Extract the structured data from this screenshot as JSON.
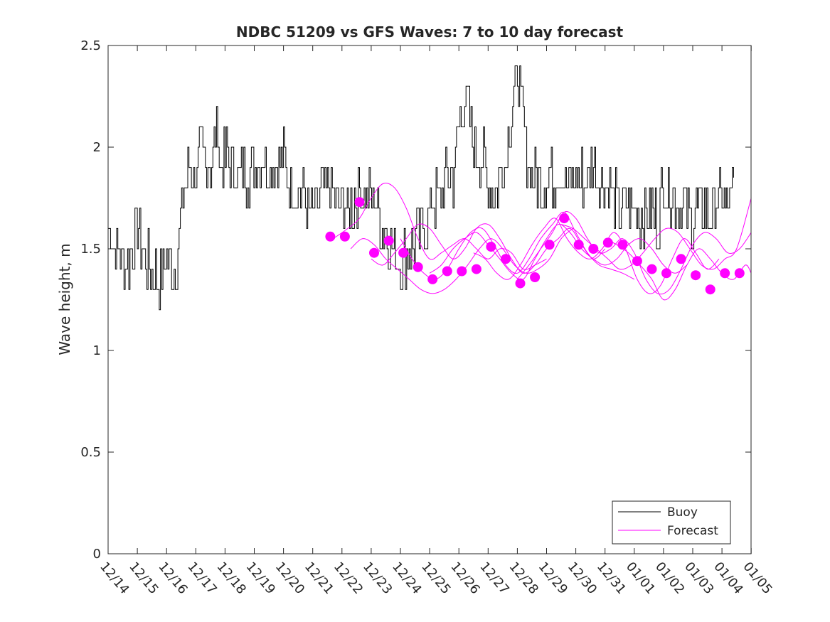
{
  "chart_data": {
    "type": "line",
    "title": "NDBC 51209 vs GFS Waves: 7 to 10 day forecast",
    "xlabel": "",
    "ylabel": "Wave height, m",
    "x_tick_labels": [
      "12/14",
      "12/15",
      "12/16",
      "12/17",
      "12/18",
      "12/19",
      "12/20",
      "12/21",
      "12/22",
      "12/23",
      "12/24",
      "12/25",
      "12/26",
      "12/27",
      "12/28",
      "12/29",
      "12/30",
      "12/31",
      "01/01",
      "01/02",
      "01/03",
      "01/04",
      "01/05"
    ],
    "xlim_days": [
      0,
      22
    ],
    "y_ticks": [
      "0",
      "0.5",
      "1",
      "1.5",
      "2",
      "2.5"
    ],
    "ylim": [
      0,
      2.5
    ],
    "grid": false,
    "legend": {
      "position": "bottom-right",
      "entries": [
        "Buoy",
        "Forecast"
      ]
    },
    "colors": {
      "buoy": "#000000",
      "forecast": "#ff00ff"
    },
    "series": [
      {
        "name": "Buoy",
        "x_day": [
          0,
          0.5,
          0.75,
          1,
          1.2,
          1.45,
          1.75,
          2,
          2.3,
          2.6,
          2.85,
          3,
          3.2,
          3.5,
          3.75,
          3.85,
          4,
          4.3,
          4.6,
          4.9,
          5.2,
          5.5,
          5.8,
          6,
          6.2,
          6.5,
          6.75,
          6.95,
          7.2,
          7.5,
          7.8,
          8.1,
          8.3,
          8.6,
          8.8,
          9.1,
          9.3,
          9.5,
          9.75,
          10,
          10.3,
          10.6,
          10.9,
          11.1,
          11.3,
          11.55,
          11.8,
          12,
          12.2,
          12.5,
          12.8,
          13,
          13.2,
          13.4,
          13.6,
          13.8,
          14,
          14.2,
          14.4,
          14.6,
          14.8,
          15,
          15.2,
          15.4,
          15.6,
          15.8,
          16,
          16.2,
          16.4,
          16.6,
          16.8,
          17,
          17.2,
          17.4,
          17.6,
          17.8,
          18,
          18.2,
          18.4,
          18.6,
          18.8,
          19,
          19.2,
          19.4,
          19.6,
          19.8,
          20,
          20.2,
          20.4,
          20.6,
          20.8,
          21,
          21.15,
          21.3,
          21.4
        ],
        "y": [
          1.6,
          1.45,
          1.45,
          1.6,
          1.45,
          1.4,
          1.35,
          1.45,
          1.4,
          1.8,
          1.9,
          1.85,
          1.95,
          1.9,
          2.1,
          1.85,
          1.95,
          1.9,
          1.85,
          1.9,
          1.95,
          1.9,
          1.95,
          1.95,
          1.8,
          1.8,
          1.75,
          1.65,
          1.75,
          1.8,
          1.75,
          1.7,
          1.7,
          1.8,
          1.75,
          1.75,
          1.65,
          1.6,
          1.5,
          1.45,
          1.5,
          1.55,
          1.6,
          1.75,
          1.75,
          1.85,
          1.85,
          2.1,
          2.25,
          2.0,
          1.95,
          1.8,
          1.75,
          1.85,
          1.95,
          2.2,
          2.35,
          2.1,
          1.9,
          1.85,
          1.8,
          1.85,
          1.85,
          1.9,
          1.85,
          1.8,
          1.85,
          1.85,
          1.85,
          1.95,
          1.8,
          1.85,
          1.8,
          1.7,
          1.7,
          1.75,
          1.7,
          1.65,
          1.65,
          1.7,
          1.65,
          1.8,
          1.8,
          1.75,
          1.7,
          1.7,
          1.65,
          1.7,
          1.7,
          1.65,
          1.75,
          1.75,
          1.7,
          1.75,
          1.85
        ]
      },
      {
        "name": "Forecast",
        "runs": [
          {
            "x_day": [
              7.7,
              8.2,
              8.6,
              9.0,
              9.4,
              9.8,
              10.2,
              10.6,
              11.0,
              11.4,
              11.8,
              12.2,
              12.6,
              13.0,
              13.4,
              13.8,
              14.2,
              14.6,
              15.0
            ],
            "y": [
              1.55,
              1.6,
              1.65,
              1.75,
              1.82,
              1.8,
              1.7,
              1.55,
              1.45,
              1.48,
              1.52,
              1.55,
              1.5,
              1.45,
              1.5,
              1.48,
              1.4,
              1.42,
              1.45
            ]
          },
          {
            "x_day": [
              8.3,
              8.7,
              9.1,
              9.5,
              9.9,
              10.3,
              10.7,
              11.1,
              11.5,
              11.9,
              12.3,
              12.7,
              13.1,
              13.5,
              13.9,
              14.3,
              14.7,
              15.1,
              15.5,
              15.9
            ],
            "y": [
              1.5,
              1.55,
              1.52,
              1.45,
              1.4,
              1.35,
              1.3,
              1.28,
              1.3,
              1.35,
              1.42,
              1.5,
              1.55,
              1.5,
              1.42,
              1.38,
              1.4,
              1.45,
              1.55,
              1.6
            ]
          },
          {
            "x_day": [
              9.0,
              9.4,
              9.8,
              10.2,
              10.6,
              11.0,
              11.4,
              11.8,
              12.2,
              12.6,
              13.0,
              13.4,
              13.8,
              14.2,
              14.6,
              15.0,
              15.4,
              15.8,
              16.2,
              16.6,
              17.0
            ],
            "y": [
              1.45,
              1.42,
              1.48,
              1.55,
              1.62,
              1.6,
              1.52,
              1.45,
              1.5,
              1.6,
              1.62,
              1.55,
              1.45,
              1.38,
              1.42,
              1.5,
              1.55,
              1.6,
              1.52,
              1.45,
              1.5
            ]
          },
          {
            "x_day": [
              10.0,
              10.4,
              10.8,
              11.2,
              11.6,
              12.0,
              12.4,
              12.8,
              13.2,
              13.6,
              14.0,
              14.4,
              14.8,
              15.2,
              15.6,
              16.0,
              16.4,
              16.8,
              17.2,
              17.6,
              18.0
            ],
            "y": [
              1.55,
              1.45,
              1.38,
              1.35,
              1.4,
              1.5,
              1.58,
              1.6,
              1.52,
              1.42,
              1.38,
              1.45,
              1.55,
              1.62,
              1.68,
              1.58,
              1.48,
              1.42,
              1.4,
              1.38,
              1.35
            ]
          },
          {
            "x_day": [
              11.0,
              11.4,
              11.8,
              12.2,
              12.6,
              13.0,
              13.4,
              13.8,
              14.2,
              14.6,
              15.0,
              15.4,
              15.8,
              16.2,
              16.6,
              17.0,
              17.4,
              17.8,
              18.2,
              18.6,
              19.0,
              19.4,
              19.8
            ],
            "y": [
              1.38,
              1.42,
              1.5,
              1.55,
              1.58,
              1.52,
              1.45,
              1.38,
              1.35,
              1.45,
              1.55,
              1.62,
              1.58,
              1.5,
              1.45,
              1.42,
              1.45,
              1.52,
              1.55,
              1.5,
              1.42,
              1.38,
              1.42
            ]
          },
          {
            "x_day": [
              12.5,
              12.9,
              13.3,
              13.7,
              14.1,
              14.5,
              14.9,
              15.3,
              15.7,
              16.1,
              16.5,
              16.9,
              17.3,
              17.7,
              18.1,
              18.5,
              18.9,
              19.3,
              19.7,
              20.1,
              20.5,
              20.9
            ],
            "y": [
              1.48,
              1.45,
              1.38,
              1.35,
              1.42,
              1.52,
              1.6,
              1.65,
              1.55,
              1.48,
              1.45,
              1.5,
              1.58,
              1.5,
              1.35,
              1.28,
              1.32,
              1.45,
              1.55,
              1.48,
              1.4,
              1.45
            ]
          },
          {
            "x_day": [
              14.0,
              14.4,
              14.8,
              15.2,
              15.6,
              16.0,
              16.4,
              16.8,
              17.2,
              17.6,
              18.0,
              18.4,
              18.8,
              19.2,
              19.6,
              20.0,
              20.4,
              20.8,
              21.2,
              21.6,
              22.0
            ],
            "y": [
              1.35,
              1.42,
              1.5,
              1.58,
              1.68,
              1.65,
              1.55,
              1.48,
              1.5,
              1.55,
              1.48,
              1.35,
              1.28,
              1.3,
              1.4,
              1.52,
              1.58,
              1.55,
              1.48,
              1.5,
              1.58
            ]
          },
          {
            "x_day": [
              15.5,
              15.9,
              16.3,
              16.7,
              17.1,
              17.5,
              17.9,
              18.3,
              18.7,
              19.1,
              19.5,
              19.9,
              20.3,
              20.7,
              21.1,
              21.5,
              22.0
            ],
            "y": [
              1.62,
              1.6,
              1.55,
              1.5,
              1.45,
              1.4,
              1.42,
              1.48,
              1.55,
              1.6,
              1.58,
              1.5,
              1.42,
              1.4,
              1.45,
              1.5,
              1.75
            ]
          },
          {
            "x_day": [
              17.0,
              17.4,
              17.8,
              18.2,
              18.6,
              19.0,
              19.4,
              19.8,
              20.2,
              20.6,
              21.0,
              21.4,
              21.8,
              22.0
            ],
            "y": [
              1.55,
              1.52,
              1.48,
              1.42,
              1.35,
              1.25,
              1.3,
              1.42,
              1.5,
              1.45,
              1.38,
              1.35,
              1.42,
              1.38
            ]
          }
        ],
        "markers": {
          "x_day": [
            7.6,
            8.1,
            8.6,
            9.1,
            9.6,
            10.1,
            10.6,
            11.1,
            11.6,
            12.1,
            12.6,
            13.1,
            13.6,
            14.1,
            14.6,
            15.1,
            15.6,
            16.1,
            16.6,
            17.1,
            17.6,
            18.1,
            18.6,
            19.1,
            19.6,
            20.1,
            20.6,
            21.1,
            21.6
          ],
          "y": [
            1.56,
            1.56,
            1.73,
            1.48,
            1.54,
            1.48,
            1.41,
            1.35,
            1.39,
            1.39,
            1.4,
            1.51,
            1.45,
            1.33,
            1.36,
            1.52,
            1.65,
            1.52,
            1.5,
            1.53,
            1.52,
            1.44,
            1.4,
            1.38,
            1.45,
            1.37,
            1.3,
            1.38,
            1.38
          ]
        }
      }
    ]
  }
}
